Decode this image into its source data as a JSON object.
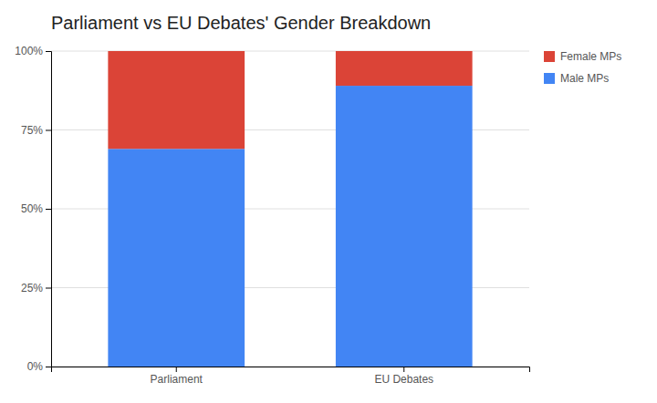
{
  "chart_data": {
    "type": "bar",
    "title": "Parliament vs EU Debates' Gender Breakdown",
    "categories": [
      "Parliament",
      "EU Debates"
    ],
    "stacked": true,
    "series": [
      {
        "name": "Male MPs",
        "color": "#4285F4",
        "values": [
          69,
          89
        ]
      },
      {
        "name": "Female MPs",
        "color": "#DB4437",
        "values": [
          31,
          11
        ]
      }
    ],
    "ylim": [
      0,
      100
    ],
    "yticks": [
      {
        "value": 0,
        "label": "0%"
      },
      {
        "value": 25,
        "label": "25%"
      },
      {
        "value": 50,
        "label": "50%"
      },
      {
        "value": 75,
        "label": "75%"
      },
      {
        "value": 100,
        "label": "100%"
      }
    ],
    "grid": true,
    "legend": "right"
  }
}
